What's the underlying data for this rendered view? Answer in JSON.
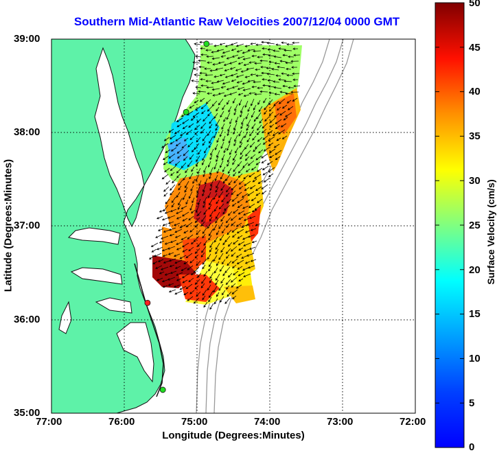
{
  "title": "Southern Mid-Atlantic Raw Velocities 2007/12/04 0000 GMT",
  "chart_data": {
    "type": "map",
    "xlabel": "Longitude (Degrees:Minutes)",
    "ylabel": "Latitude (Degrees:Minutes)",
    "x_ticks": [
      "77:00",
      "76:00",
      "75:00",
      "74:00",
      "73:00",
      "72:00"
    ],
    "y_ticks": [
      "39:00",
      "38:00",
      "37:00",
      "36:00",
      "35:00"
    ],
    "xlim": [
      -77,
      -72
    ],
    "ylim": [
      35,
      39
    ],
    "grid": true,
    "colorbar": {
      "label": "Surface Velocity (cm/s)",
      "ticks": [
        "50",
        "45",
        "40",
        "35",
        "30",
        "25",
        "20",
        "15",
        "10",
        "5",
        "0"
      ],
      "range": [
        0,
        50
      ],
      "colormap": "jet"
    },
    "stations": [
      {
        "lon": -74.87,
        "lat": 38.95,
        "color": "#22dd22"
      },
      {
        "lon": -75.15,
        "lat": 38.22,
        "color": "#22dd22"
      },
      {
        "lon": -75.68,
        "lat": 36.18,
        "color": "#ff2020"
      },
      {
        "lon": -75.47,
        "lat": 35.25,
        "color": "#22dd22"
      }
    ]
  },
  "colors": {
    "land": "#5ef2a8",
    "coast": "#1a1a1a",
    "bathymetry": "#999999",
    "title": "#0000ff"
  }
}
